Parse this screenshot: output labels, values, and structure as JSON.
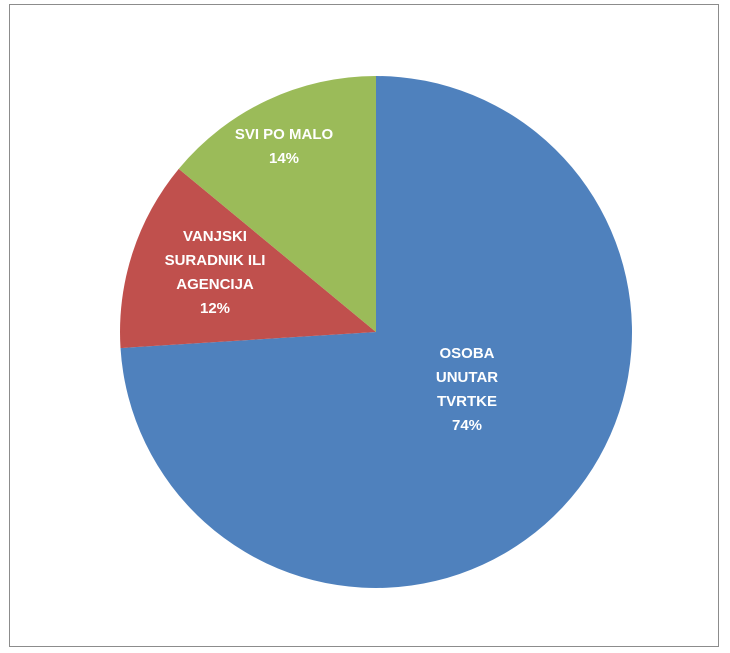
{
  "chart_data": {
    "type": "pie",
    "slices": [
      {
        "label_lines": [
          "OSOBA",
          "UNUTAR",
          "TVRTKE"
        ],
        "value": 74,
        "value_label": "74%",
        "color": "#4f81bd"
      },
      {
        "label_lines": [
          "VANJSKI",
          "SURADNIK ILI",
          "AGENCIJA"
        ],
        "value": 12,
        "value_label": "12%",
        "color": "#c0504d"
      },
      {
        "label_lines": [
          "SVI PO MALO"
        ],
        "value": 14,
        "value_label": "14%",
        "color": "#9bbb59"
      }
    ],
    "legend": "none",
    "data_labels": "inside"
  }
}
